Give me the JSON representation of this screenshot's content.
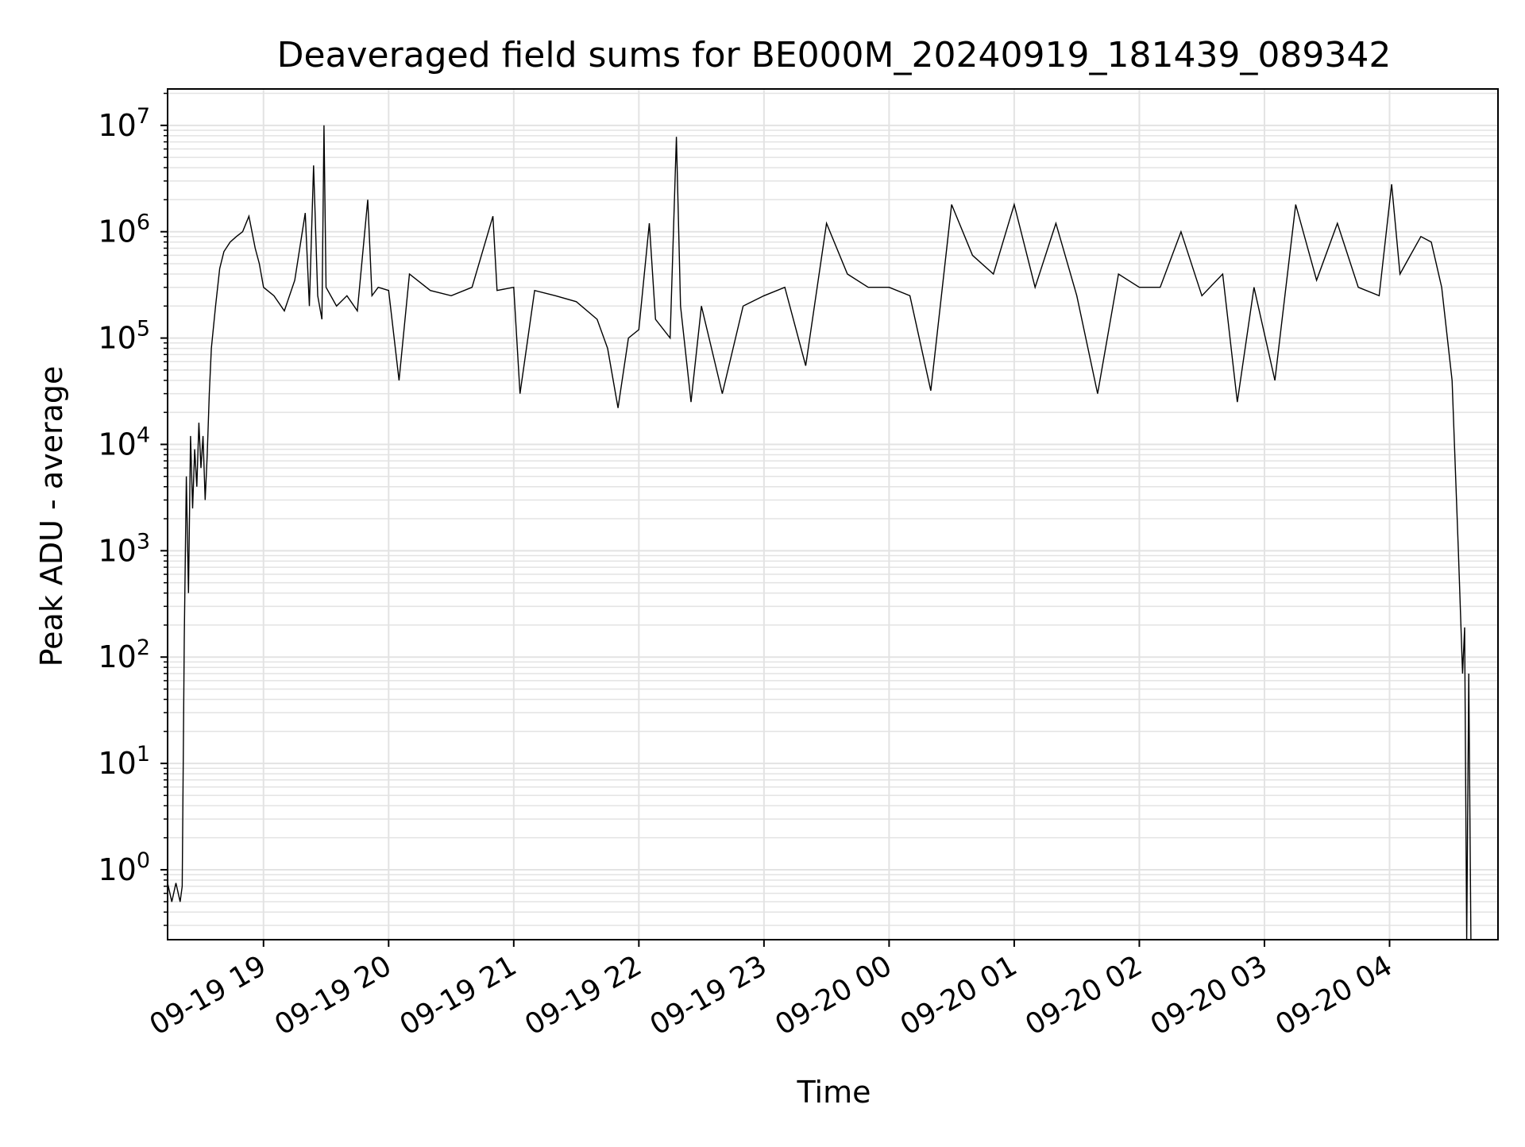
{
  "chart_data": {
    "type": "line",
    "title": "Deaveraged field sums for BE000M_20240919_181439_089342",
    "xlabel": "Time",
    "ylabel": "Peak ADU - average",
    "yscale": "log",
    "grid": true,
    "legend": "none",
    "line_color": "#000000",
    "grid_color": "#e3e3e3",
    "xlim": [
      "2024-09-19 18:14",
      "2024-09-20 04:52"
    ],
    "ylim": [
      0.22,
      22000000
    ],
    "x_ticks": [
      "09-19 19",
      "09-19 20",
      "09-19 21",
      "09-19 22",
      "09-19 23",
      "09-20 00",
      "09-20 01",
      "09-20 02",
      "09-20 03",
      "09-20 04"
    ],
    "x_tick_times": [
      "2024-09-19 19:00",
      "2024-09-19 20:00",
      "2024-09-19 21:00",
      "2024-09-19 22:00",
      "2024-09-19 23:00",
      "2024-09-20 00:00",
      "2024-09-20 01:00",
      "2024-09-20 02:00",
      "2024-09-20 03:00",
      "2024-09-20 04:00"
    ],
    "y_ticks": [
      {
        "value": 1,
        "base": "10",
        "exp": "0"
      },
      {
        "value": 10,
        "base": "10",
        "exp": "1"
      },
      {
        "value": 100,
        "base": "10",
        "exp": "2"
      },
      {
        "value": 1000,
        "base": "10",
        "exp": "3"
      },
      {
        "value": 10000,
        "base": "10",
        "exp": "4"
      },
      {
        "value": 100000,
        "base": "10",
        "exp": "5"
      },
      {
        "value": 1000000,
        "base": "10",
        "exp": "6"
      },
      {
        "value": 10000000,
        "base": "10",
        "exp": "7"
      }
    ],
    "series": [
      {
        "points": [
          [
            "2024-09-19 18:14",
            0.75
          ],
          [
            "2024-09-19 18:16",
            0.5
          ],
          [
            "2024-09-19 18:18",
            0.75
          ],
          [
            "2024-09-19 18:20",
            0.5
          ],
          [
            "2024-09-19 18:21",
            0.7
          ],
          [
            "2024-09-19 18:22",
            150
          ],
          [
            "2024-09-19 18:23",
            5000
          ],
          [
            "2024-09-19 18:24",
            400
          ],
          [
            "2024-09-19 18:25",
            12000
          ],
          [
            "2024-09-19 18:26",
            2500
          ],
          [
            "2024-09-19 18:27",
            9000
          ],
          [
            "2024-09-19 18:28",
            4000
          ],
          [
            "2024-09-19 18:29",
            16000
          ],
          [
            "2024-09-19 18:30",
            6000
          ],
          [
            "2024-09-19 18:31",
            12000
          ],
          [
            "2024-09-19 18:32",
            3000
          ],
          [
            "2024-09-19 18:33",
            8000
          ],
          [
            "2024-09-19 18:34",
            30000
          ],
          [
            "2024-09-19 18:35",
            80000
          ],
          [
            "2024-09-19 18:37",
            200000
          ],
          [
            "2024-09-19 18:39",
            450000
          ],
          [
            "2024-09-19 18:41",
            650000
          ],
          [
            "2024-09-19 18:44",
            800000
          ],
          [
            "2024-09-19 18:47",
            900000
          ],
          [
            "2024-09-19 18:50",
            1000000
          ],
          [
            "2024-09-19 18:53",
            1400000
          ],
          [
            "2024-09-19 18:56",
            700000
          ],
          [
            "2024-09-19 18:58",
            500000
          ],
          [
            "2024-09-19 19:00",
            300000
          ],
          [
            "2024-09-19 19:05",
            250000
          ],
          [
            "2024-09-19 19:10",
            180000
          ],
          [
            "2024-09-19 19:15",
            350000
          ],
          [
            "2024-09-19 19:20",
            1500000
          ],
          [
            "2024-09-19 19:22",
            200000
          ],
          [
            "2024-09-19 19:24",
            4200000
          ],
          [
            "2024-09-19 19:26",
            250000
          ],
          [
            "2024-09-19 19:28",
            150000
          ],
          [
            "2024-09-19 19:29",
            10000000
          ],
          [
            "2024-09-19 19:30",
            300000
          ],
          [
            "2024-09-19 19:35",
            200000
          ],
          [
            "2024-09-19 19:40",
            250000
          ],
          [
            "2024-09-19 19:45",
            180000
          ],
          [
            "2024-09-19 19:50",
            2000000
          ],
          [
            "2024-09-19 19:52",
            250000
          ],
          [
            "2024-09-19 19:55",
            300000
          ],
          [
            "2024-09-19 20:00",
            280000
          ],
          [
            "2024-09-19 20:05",
            40000
          ],
          [
            "2024-09-19 20:10",
            400000
          ],
          [
            "2024-09-19 20:20",
            280000
          ],
          [
            "2024-09-19 20:30",
            250000
          ],
          [
            "2024-09-19 20:40",
            300000
          ],
          [
            "2024-09-19 20:50",
            1400000
          ],
          [
            "2024-09-19 20:52",
            280000
          ],
          [
            "2024-09-19 21:00",
            300000
          ],
          [
            "2024-09-19 21:03",
            30000
          ],
          [
            "2024-09-19 21:10",
            280000
          ],
          [
            "2024-09-19 21:20",
            250000
          ],
          [
            "2024-09-19 21:30",
            220000
          ],
          [
            "2024-09-19 21:40",
            150000
          ],
          [
            "2024-09-19 21:45",
            80000
          ],
          [
            "2024-09-19 21:50",
            22000
          ],
          [
            "2024-09-19 21:55",
            100000
          ],
          [
            "2024-09-19 22:00",
            120000
          ],
          [
            "2024-09-19 22:05",
            1200000
          ],
          [
            "2024-09-19 22:08",
            150000
          ],
          [
            "2024-09-19 22:15",
            100000
          ],
          [
            "2024-09-19 22:18",
            7800000
          ],
          [
            "2024-09-19 22:20",
            200000
          ],
          [
            "2024-09-19 22:25",
            25000
          ],
          [
            "2024-09-19 22:30",
            200000
          ],
          [
            "2024-09-19 22:40",
            30000
          ],
          [
            "2024-09-19 22:50",
            200000
          ],
          [
            "2024-09-19 23:00",
            250000
          ],
          [
            "2024-09-19 23:10",
            300000
          ],
          [
            "2024-09-19 23:20",
            55000
          ],
          [
            "2024-09-19 23:30",
            1200000
          ],
          [
            "2024-09-19 23:40",
            400000
          ],
          [
            "2024-09-19 23:50",
            300000
          ],
          [
            "2024-09-20 00:00",
            300000
          ],
          [
            "2024-09-20 00:10",
            250000
          ],
          [
            "2024-09-20 00:20",
            32000
          ],
          [
            "2024-09-20 00:30",
            1800000
          ],
          [
            "2024-09-20 00:40",
            600000
          ],
          [
            "2024-09-20 00:50",
            400000
          ],
          [
            "2024-09-20 01:00",
            1800000
          ],
          [
            "2024-09-20 01:10",
            300000
          ],
          [
            "2024-09-20 01:20",
            1200000
          ],
          [
            "2024-09-20 01:30",
            250000
          ],
          [
            "2024-09-20 01:40",
            30000
          ],
          [
            "2024-09-20 01:50",
            400000
          ],
          [
            "2024-09-20 02:00",
            300000
          ],
          [
            "2024-09-20 02:10",
            300000
          ],
          [
            "2024-09-20 02:20",
            1000000
          ],
          [
            "2024-09-20 02:30",
            250000
          ],
          [
            "2024-09-20 02:40",
            400000
          ],
          [
            "2024-09-20 02:47",
            25000
          ],
          [
            "2024-09-20 02:55",
            300000
          ],
          [
            "2024-09-20 03:05",
            40000
          ],
          [
            "2024-09-20 03:15",
            1800000
          ],
          [
            "2024-09-20 03:25",
            350000
          ],
          [
            "2024-09-20 03:35",
            1200000
          ],
          [
            "2024-09-20 03:45",
            300000
          ],
          [
            "2024-09-20 03:55",
            250000
          ],
          [
            "2024-09-20 04:01",
            2800000
          ],
          [
            "2024-09-20 04:05",
            400000
          ],
          [
            "2024-09-20 04:10",
            600000
          ],
          [
            "2024-09-20 04:15",
            900000
          ],
          [
            "2024-09-20 04:20",
            800000
          ],
          [
            "2024-09-20 04:25",
            300000
          ],
          [
            "2024-09-20 04:30",
            40000
          ],
          [
            "2024-09-20 04:33",
            1000
          ],
          [
            "2024-09-20 04:35",
            70
          ],
          [
            "2024-09-20 04:36",
            190
          ],
          [
            "2024-09-20 04:37",
            0.22
          ],
          [
            "2024-09-20 04:38",
            70
          ],
          [
            "2024-09-20 04:39",
            0.22
          ]
        ]
      }
    ]
  }
}
